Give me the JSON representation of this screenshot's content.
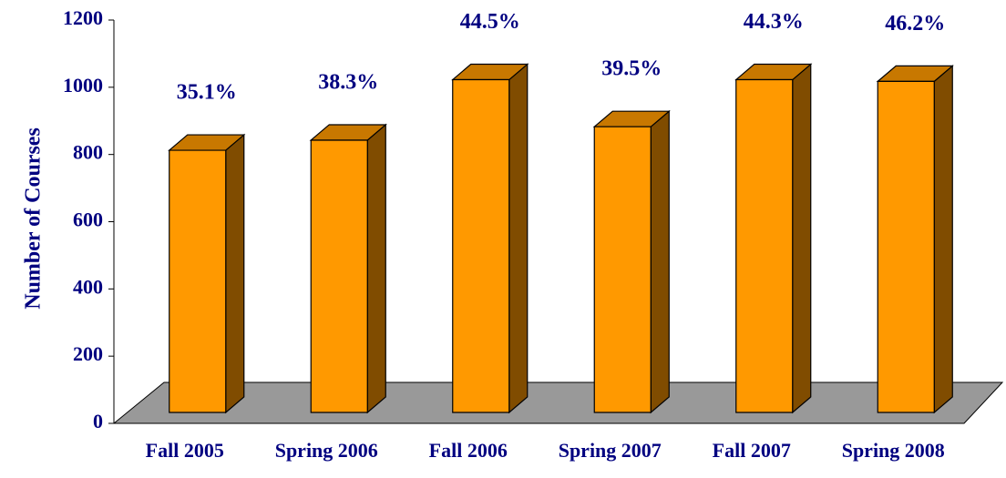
{
  "chart_data": {
    "type": "bar3d",
    "y_axis_label": "Number of Courses",
    "categories": [
      "Fall 2005",
      "Spring 2006",
      "Fall 2006",
      "Spring 2007",
      "Fall 2007",
      "Spring 2008"
    ],
    "values": [
      780,
      810,
      990,
      850,
      990,
      985
    ],
    "value_labels": [
      "35.1%",
      "38.3%",
      "44.5%",
      "39.5%",
      "44.3%",
      "46.2%"
    ],
    "color": "#ff9900",
    "ylim": [
      0,
      1200
    ],
    "yticks": [
      0,
      200,
      400,
      600,
      800,
      1000,
      1200
    ]
  }
}
